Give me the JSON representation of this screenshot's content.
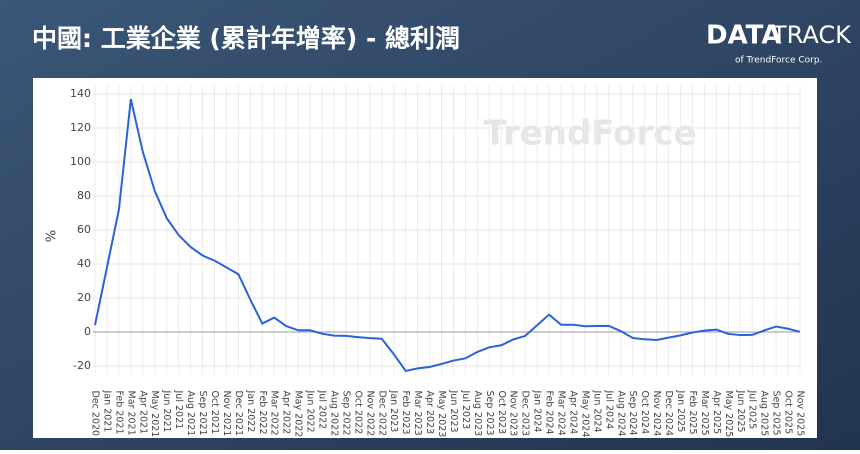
{
  "header": {
    "title": "中國: 工業企業 (累計年增率) - 總利潤",
    "logo_bold": "DATA",
    "logo_light": "TRACK",
    "logo_sub": "of TrendForce Corp."
  },
  "chart_data": {
    "type": "line",
    "watermark": "TrendForce",
    "ylabel": "%",
    "categories": [
      "Dec 2020",
      "Jan 2021",
      "Feb 2021",
      "Mar 2021",
      "Apr 2021",
      "May 2021",
      "Jun 2021",
      "Jul 2021",
      "Aug 2021",
      "Sep 2021",
      "Oct 2021",
      "Nov 2021",
      "Dec 2021",
      "Jan 2022",
      "Feb 2022",
      "Mar 2022",
      "Apr 2022",
      "May 2022",
      "Jun 2022",
      "Jul 2022",
      "Aug 2022",
      "Sep 2022",
      "Oct 2022",
      "Nov 2022",
      "Dec 2022",
      "Jan 2023",
      "Feb 2023",
      "Mar 2023",
      "Apr 2023",
      "May 2023",
      "Jun 2023",
      "Jul 2023",
      "Aug 2023",
      "Sep 2023",
      "Oct 2023",
      "Nov 2023",
      "Dec 2023",
      "Jan 2024",
      "Feb 2024",
      "Mar 2024",
      "Apr 2024",
      "May 2024",
      "Jun 2024",
      "Jul 2024",
      "Aug 2024",
      "Sep 2024",
      "Oct 2024",
      "Nov 2024",
      "Dec 2024",
      "Jan 2025",
      "Feb 2025",
      "Mar 2025",
      "Apr 2025",
      "May 2025",
      "Jun 2025",
      "Jul 2025",
      "Aug 2025",
      "Sep 2025",
      "Oct 2025",
      "Nov 2025"
    ],
    "series": [
      {
        "name": "總利潤",
        "color": "#2a63d8",
        "values": [
          4.1,
          38,
          72,
          137,
          106,
          83,
          67,
          57,
          50,
          45,
          42,
          38,
          34,
          19,
          5,
          8.5,
          3.5,
          1,
          1,
          -1,
          -2.1,
          -2.3,
          -3,
          -3.6,
          -4,
          -13,
          -22.9,
          -21.4,
          -20.6,
          -18.8,
          -16.8,
          -15.5,
          -11.7,
          -9,
          -7.8,
          -4.4,
          -2.3,
          4,
          10.2,
          4.3,
          4.3,
          3.4,
          3.5,
          3.6,
          0.5,
          -3.5,
          -4.3,
          -4.7,
          -3.3,
          -2,
          -0.3,
          0.8,
          1.4,
          -1.1,
          -1.8,
          -1.7,
          0.9,
          3.2,
          1.9,
          0.1
        ]
      }
    ],
    "ylim": [
      -25,
      145
    ],
    "yticks": [
      -20,
      0,
      20,
      40,
      60,
      80,
      100,
      120,
      140
    ],
    "grid": true
  }
}
